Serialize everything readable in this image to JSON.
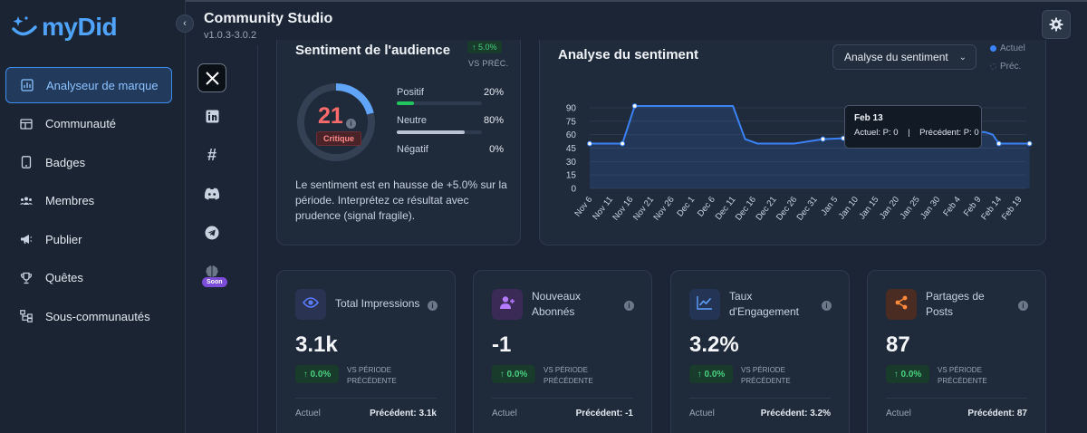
{
  "brand": {
    "name": "myDid",
    "accent": "#4fa3ff"
  },
  "header": {
    "title": "Community Studio",
    "version": "v1.0.3-3.0.2"
  },
  "sidebar": {
    "items": [
      {
        "label": "Analyseur de marque",
        "icon": "chart-icon",
        "active": true
      },
      {
        "label": "Communauté",
        "icon": "layout-icon"
      },
      {
        "label": "Badges",
        "icon": "tablet-icon"
      },
      {
        "label": "Membres",
        "icon": "users-icon"
      },
      {
        "label": "Publier",
        "icon": "megaphone-icon"
      },
      {
        "label": "Quêtes",
        "icon": "trophy-icon"
      },
      {
        "label": "Sous-communautés",
        "icon": "sitemap-icon"
      }
    ]
  },
  "social": {
    "items": [
      "x-icon",
      "linkedin-icon",
      "hashtag-icon",
      "discord-icon",
      "telegram-icon",
      "brain-icon"
    ],
    "soon_label": "Soon"
  },
  "sentiment": {
    "title": "Sentiment de l'audience",
    "change": "↑ 5.0%",
    "vs_label": "VS PRÉC.",
    "score": "21",
    "info": "i",
    "badge": "Critique",
    "gauge_fraction": 0.21,
    "bars": [
      {
        "label": "Positif",
        "value": "20%",
        "fraction": 0.2,
        "color": "#22c55e"
      },
      {
        "label": "Neutre",
        "value": "80%",
        "fraction": 0.8,
        "color": "#b9c3d1"
      },
      {
        "label": "Négatif",
        "value": "0%",
        "fraction": 0,
        "color": "#ef4444"
      }
    ],
    "description": "Le sentiment est en hausse de +5.0% sur la période. Interprétez ce résultat avec prudence (signal fragile)."
  },
  "analysis": {
    "title": "Analyse du sentiment",
    "select_value": "Analyse du sentiment",
    "legend": [
      {
        "label": "Actuel",
        "color": "#3b82f6"
      },
      {
        "label": "Préc.",
        "color": "#3b4a62"
      }
    ],
    "tooltip": {
      "title": "Feb 13",
      "body": "Actuel: P: 0    |    Précédent: P: 0"
    }
  },
  "chart_data": {
    "type": "line",
    "title": "Analyse du sentiment",
    "xlabel": "",
    "ylabel": "",
    "ylim": [
      0,
      95
    ],
    "yticks": [
      0,
      15,
      30,
      45,
      60,
      75,
      90
    ],
    "grid": true,
    "legend": "top-right",
    "x": [
      "Nov 6",
      "Nov 11",
      "Nov 16",
      "Nov 21",
      "Nov 26",
      "Dec 1",
      "Dec 6",
      "Dec 11",
      "Dec 16",
      "Dec 21",
      "Dec 26",
      "Dec 31",
      "Jan 5",
      "Jan 10",
      "Jan 15",
      "Jan 20",
      "Jan 25",
      "Jan 30",
      "Feb 4",
      "Feb 9",
      "Feb 14",
      "Feb 19"
    ],
    "series": [
      {
        "name": "Actuel",
        "points": [
          [
            0,
            50
          ],
          [
            1.6,
            50
          ],
          [
            2.2,
            92
          ],
          [
            7,
            92
          ],
          [
            7.6,
            55
          ],
          [
            8.2,
            50
          ],
          [
            10,
            50
          ],
          [
            11.4,
            55
          ],
          [
            12.4,
            56
          ],
          [
            12.9,
            63
          ],
          [
            14,
            60
          ],
          [
            16,
            60
          ],
          [
            17.8,
            60
          ],
          [
            18.6,
            63
          ],
          [
            19.3,
            63
          ],
          [
            19.7,
            60
          ],
          [
            20,
            50
          ],
          [
            21.5,
            50
          ]
        ]
      }
    ]
  },
  "stats": [
    {
      "label": "Total Impressions",
      "value": "3.1k",
      "change": "↑ 0.0%",
      "vs": "VS PÉRIODE\nPRÉCÉDENTE",
      "actuel_label": "Actuel",
      "prev": "Précédent: 3.1k",
      "icon": "eye-icon",
      "accent": "#5b7cff",
      "bg": "#2a3352"
    },
    {
      "label": "Nouveaux Abonnés",
      "value": "-1",
      "change": "↑ 0.0%",
      "vs": "VS PÉRIODE\nPRÉCÉDENTE",
      "actuel_label": "Actuel",
      "prev": "Précédent: -1",
      "icon": "user-plus-icon",
      "accent": "#b57bff",
      "bg": "#3a2a55"
    },
    {
      "label": "Taux d'Engagement",
      "value": "3.2%",
      "change": "↑ 0.0%",
      "vs": "VS PÉRIODE\nPRÉCÉDENTE",
      "actuel_label": "Actuel",
      "prev": "Précédent: 3.2%",
      "icon": "trend-icon",
      "accent": "#5fa0ff",
      "bg": "#233454"
    },
    {
      "label": "Partages de Posts",
      "value": "87",
      "change": "↑ 0.0%",
      "vs": "VS PÉRIODE\nPRÉCÉDENTE",
      "actuel_label": "Actuel",
      "prev": "Précédent: 87",
      "icon": "share-icon",
      "accent": "#ff8a3d",
      "bg": "#4a2c22"
    }
  ]
}
